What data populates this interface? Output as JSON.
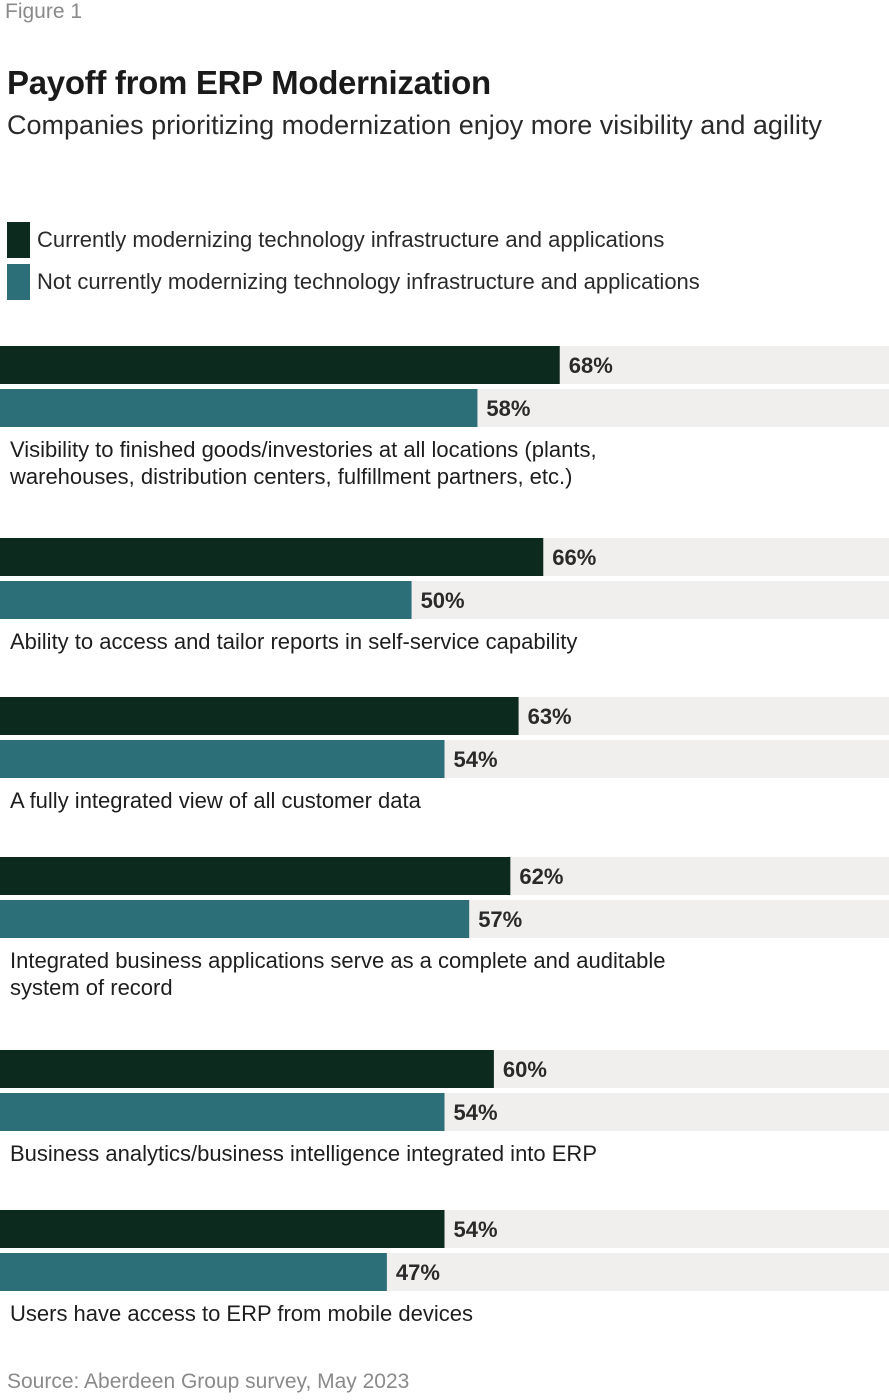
{
  "figure_label": "Figure 1",
  "colors": {
    "series1": "#0d2a1f",
    "series2": "#2c6f78",
    "track": "#f1efed"
  },
  "source": "Source: Aberdeen Group survey, May 2023",
  "chart_data": {
    "type": "bar",
    "orientation": "horizontal",
    "title": "Payoff from ERP Modernization",
    "subtitle": "Companies prioritizing modernization enjoy more visibility and agility",
    "xlim": [
      0,
      108
    ],
    "categories": [
      "Visibility to finished goods/investories at all locations (plants, warehouses, distribution centers, fulfillment partners, etc.)",
      "Ability to access and tailor reports in self-service capability",
      "A fully integrated view of all customer data",
      "Integrated business applications serve as a complete and auditable system of record",
      "Business analytics/business intelligence integrated into ERP",
      "Users have access to ERP from mobile devices"
    ],
    "series": [
      {
        "name": "Currently modernizing technology infrastructure and applications",
        "values": [
          68,
          66,
          63,
          62,
          60,
          54
        ],
        "labels": [
          "68%",
          "66%",
          "63%",
          "62%",
          "60%",
          "54%"
        ]
      },
      {
        "name": "Not currently modernizing technology infrastructure and applications",
        "values": [
          58,
          50,
          54,
          57,
          54,
          47
        ],
        "labels": [
          "58%",
          "50%",
          "54%",
          "57%",
          "54%",
          "47%"
        ]
      }
    ],
    "legend_position": "top-left",
    "grid": false
  }
}
